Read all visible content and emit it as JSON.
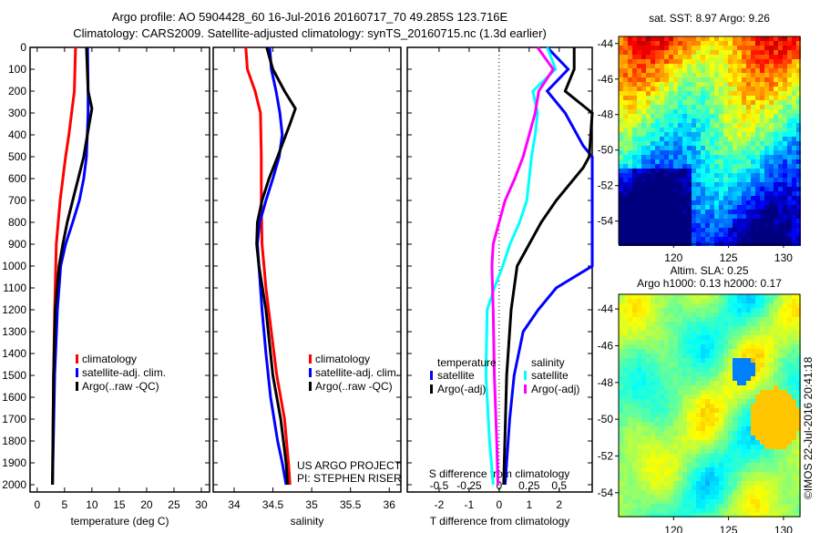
{
  "title_line1": "Argo profile: AO 5904428_60 16-Jul-2016 20160717_70 49.285S 123.716E",
  "title_line2": "Climatology: CARS2009. Satellite-adjusted climatology: synTS_20160715.nc (1.3d earlier)",
  "credit": "©IMOS 22-Jul-2016 20:41:18",
  "project_line1": "US ARGO PROJECT",
  "project_line2": "PI: STEPHEN RISER",
  "colors": {
    "red": "#ff0000",
    "blue": "#0000ff",
    "black": "#000000",
    "cyan": "#00ffff",
    "magenta": "#ff00ff"
  },
  "chart_data": [
    {
      "type": "line",
      "xlabel": "temperature (deg C)",
      "ylabel": "depth",
      "xlim": [
        -1.3,
        31.5
      ],
      "ylim": [
        2030,
        0
      ],
      "xticks": [
        0,
        5,
        10,
        15,
        20,
        25,
        30
      ],
      "yticks": [
        0,
        100,
        200,
        300,
        400,
        500,
        600,
        700,
        800,
        900,
        1000,
        1100,
        1200,
        1300,
        1400,
        1500,
        1600,
        1700,
        1800,
        1900,
        2000
      ],
      "legend": [
        "climatology",
        "satellite-adj. clim.",
        "Argo(..raw -QC)"
      ],
      "series": [
        {
          "name": "climatology",
          "color": "#ff0000",
          "depth": [
            0,
            200,
            400,
            500,
            700,
            900,
            1200,
            1500,
            2000
          ],
          "values": [
            7,
            6.8,
            5.8,
            5.2,
            4.2,
            3.5,
            3.2,
            3.0,
            2.8
          ]
        },
        {
          "name": "satellite-adj. clim.",
          "color": "#0000ff",
          "depth": [
            0,
            200,
            300,
            500,
            600,
            700,
            800,
            900,
            1000,
            1200,
            1500,
            2000
          ],
          "values": [
            9.2,
            9.3,
            9.3,
            9,
            8.5,
            7.7,
            6.5,
            5.2,
            4.3,
            3.7,
            3.2,
            2.8
          ]
        },
        {
          "name": "Argo(..raw -QC)",
          "color": "#000000",
          "depth": [
            0,
            200,
            280,
            350,
            500,
            600,
            700,
            800,
            900,
            1000,
            1200,
            1500,
            2000
          ],
          "values": [
            9,
            9.3,
            10,
            9.5,
            8.5,
            7.5,
            6.5,
            5.5,
            4.7,
            4,
            3.3,
            3.0,
            2.8
          ]
        }
      ]
    },
    {
      "type": "line",
      "xlabel": "salinity",
      "xlim": [
        33.73,
        36.15
      ],
      "ylim": [
        2030,
        0
      ],
      "xticks": [
        34,
        34.5,
        35,
        35.5,
        36
      ],
      "legend": [
        "climatology",
        "satellite-adj. clim.",
        "Argo(..raw -QC)"
      ],
      "series": [
        {
          "name": "climatology",
          "color": "#ff0000",
          "depth": [
            0,
            100,
            200,
            300,
            500,
            700,
            900,
            1100,
            1300,
            1500,
            1700,
            1900,
            2000
          ],
          "values": [
            34.15,
            34.17,
            34.27,
            34.34,
            34.35,
            34.35,
            34.36,
            34.41,
            34.48,
            34.55,
            34.65,
            34.7,
            34.72
          ]
        },
        {
          "name": "satellite-adj. clim.",
          "color": "#0000ff",
          "depth": [
            0,
            100,
            200,
            300,
            400,
            500,
            600,
            700,
            800,
            900,
            1000,
            1200,
            1400,
            1600,
            1800,
            1900,
            2000
          ],
          "values": [
            34.46,
            34.48,
            34.54,
            34.59,
            34.62,
            34.58,
            34.5,
            34.41,
            34.33,
            34.3,
            34.32,
            34.36,
            34.41,
            34.47,
            34.56,
            34.62,
            34.67
          ]
        },
        {
          "name": "Argo(..raw -QC)",
          "color": "#000000",
          "depth": [
            0,
            100,
            200,
            280,
            350,
            500,
            600,
            700,
            800,
            900,
            1000,
            1200,
            1500,
            1700,
            1900,
            2000
          ],
          "values": [
            34.42,
            34.5,
            34.65,
            34.79,
            34.72,
            34.56,
            34.45,
            34.36,
            34.3,
            34.29,
            34.32,
            34.41,
            34.5,
            34.6,
            34.67,
            34.69
          ]
        }
      ]
    },
    {
      "type": "line",
      "xlabel": "T difference from climatology",
      "x2label": "S difference from climatology",
      "xlim": [
        -3.06,
        3.1
      ],
      "x2lim": [
        -0.765,
        0.775
      ],
      "ylim": [
        2030,
        0
      ],
      "xticks": [
        -2,
        -1,
        0,
        1,
        2
      ],
      "x2ticks": [
        -0.5,
        -0.25,
        0,
        0.25,
        0.5
      ],
      "legend_headers": [
        "temperature",
        "salinity"
      ],
      "legend": [
        "satellite",
        "Argo(-adj)",
        "satellite",
        "Argo(-adj)"
      ],
      "series": [
        {
          "name": "T satellite",
          "axis": "T",
          "color": "#0000ff",
          "depth": [
            0,
            100,
            200,
            300,
            450,
            500,
            1000,
            1100,
            1200,
            1300,
            1500,
            1700,
            2000
          ],
          "values": [
            1.6,
            2.3,
            1.6,
            2.2,
            2.8,
            3.1,
            3.1,
            1.9,
            1.3,
            0.8,
            0.5,
            0.35,
            0.2
          ]
        },
        {
          "name": "T Argo(-adj)",
          "axis": "T",
          "color": "#000000",
          "depth": [
            0,
            100,
            200,
            300,
            500,
            550,
            700,
            800,
            900,
            1000,
            1200,
            1500,
            2000
          ],
          "values": [
            2.5,
            2.5,
            2.2,
            3.1,
            3.0,
            2.8,
            1.9,
            1.4,
            1.0,
            0.6,
            0.4,
            0.25,
            0.15
          ]
        },
        {
          "name": "S satellite",
          "axis": "S",
          "color": "#00ffff",
          "depth": [
            0,
            100,
            200,
            300,
            400,
            500,
            700,
            800,
            900,
            1000,
            1100,
            1200,
            1500,
            1800,
            2000
          ],
          "values": [
            0.4,
            0.47,
            0.28,
            0.32,
            0.3,
            0.27,
            0.23,
            0.17,
            0.09,
            0.03,
            -0.04,
            -0.1,
            -0.11,
            -0.08,
            -0.05
          ]
        },
        {
          "name": "S Argo(-adj)",
          "axis": "S",
          "color": "#ff00ff",
          "depth": [
            0,
            100,
            200,
            300,
            500,
            600,
            700,
            800,
            900,
            1000,
            1200,
            1500,
            1800,
            2000
          ],
          "values": [
            0.32,
            0.45,
            0.33,
            0.3,
            0.2,
            0.13,
            0.05,
            0,
            -0.05,
            -0.06,
            -0.05,
            -0.04,
            -0.02,
            -0.01
          ]
        }
      ]
    },
    {
      "type": "heatmap",
      "title": "sat. SST: 8.97 Argo: 9.26",
      "xlim": [
        115,
        131.5
      ],
      "ylim": [
        -55.3,
        -43.6
      ],
      "xticks": [
        120,
        125,
        130
      ],
      "yticks": [
        -44,
        -46,
        -48,
        -50,
        -52,
        -54
      ],
      "description_values": {
        "sat_sst": 8.97,
        "argo": 9.26
      }
    },
    {
      "type": "heatmap",
      "title": "Altim. SLA: 0.25",
      "subtitle": "Argo h1000: 0.13 h2000: 0.17",
      "xlim": [
        115,
        131.5
      ],
      "ylim": [
        -55.3,
        -43.2
      ],
      "xticks": [
        120,
        125,
        130
      ],
      "yticks": [
        -44,
        -46,
        -48,
        -50,
        -52,
        -54
      ],
      "description_values": {
        "sla": 0.25,
        "h1000": 0.13,
        "h2000": 0.17
      }
    }
  ]
}
